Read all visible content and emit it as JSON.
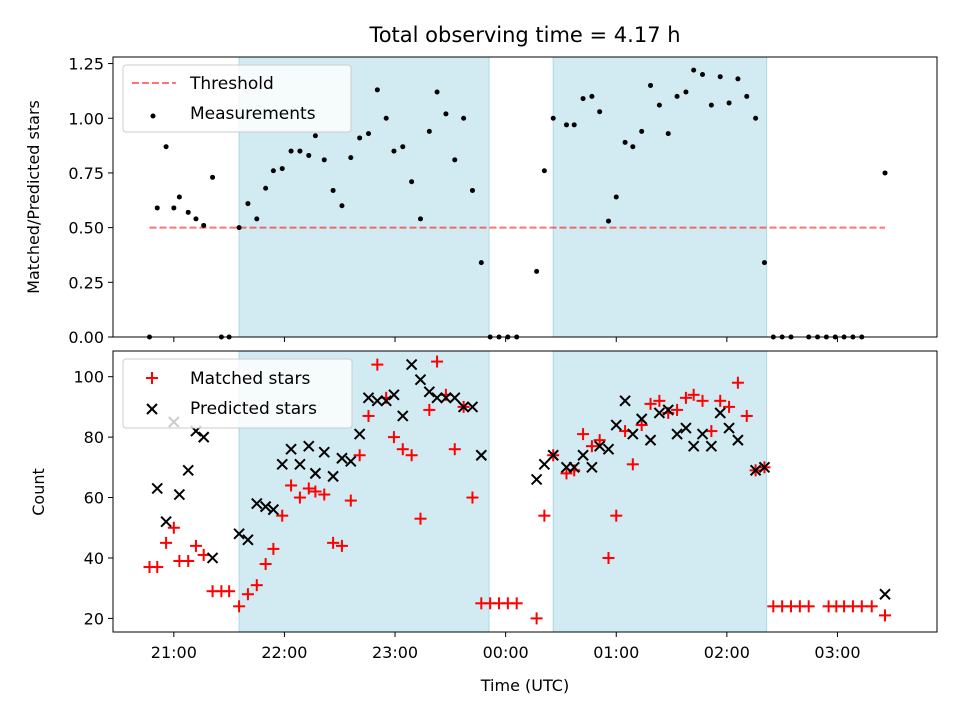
{
  "chart_data": {
    "title": "Total observing time = 4.17 h",
    "xlabel": "Time (UTC)",
    "x_tick_labels": [
      "21:00",
      "22:00",
      "23:00",
      "00:00",
      "01:00",
      "02:00",
      "03:00"
    ],
    "x_range_hours": [
      20.45,
      27.9
    ],
    "shaded_intervals_hours": [
      [
        21.59,
        23.85
      ],
      [
        24.43,
        26.36
      ]
    ],
    "shade_color": "#add8e6",
    "panels": [
      {
        "type": "scatter",
        "ylabel": "Matched/Predicted stars",
        "ylim": [
          0,
          1.28
        ],
        "yticks": [
          "0.00",
          "0.25",
          "0.50",
          "0.75",
          "1.00",
          "1.25"
        ],
        "threshold": {
          "name": "Threshold",
          "value": 0.5,
          "x_range": [
            20.78,
            27.43
          ],
          "color": "#ff0000"
        },
        "series": [
          {
            "name": "Measurements",
            "color": "#000000",
            "points": [
              [
                20.78,
                0.0
              ],
              [
                20.85,
                0.59
              ],
              [
                20.93,
                0.87
              ],
              [
                21.0,
                0.59
              ],
              [
                21.05,
                0.64
              ],
              [
                21.13,
                0.57
              ],
              [
                21.2,
                0.54
              ],
              [
                21.27,
                0.51
              ],
              [
                21.35,
                0.73
              ],
              [
                21.43,
                0.0
              ],
              [
                21.5,
                0.0
              ],
              [
                21.59,
                0.5
              ],
              [
                21.67,
                0.61
              ],
              [
                21.75,
                0.54
              ],
              [
                21.83,
                0.68
              ],
              [
                21.9,
                0.76
              ],
              [
                21.98,
                0.77
              ],
              [
                22.06,
                0.85
              ],
              [
                22.14,
                0.85
              ],
              [
                22.22,
                0.83
              ],
              [
                22.28,
                0.92
              ],
              [
                22.36,
                0.81
              ],
              [
                22.44,
                0.67
              ],
              [
                22.52,
                0.6
              ],
              [
                22.6,
                0.82
              ],
              [
                22.68,
                0.91
              ],
              [
                22.76,
                0.93
              ],
              [
                22.84,
                1.13
              ],
              [
                22.92,
                1.0
              ],
              [
                22.99,
                0.85
              ],
              [
                23.07,
                0.87
              ],
              [
                23.15,
                0.71
              ],
              [
                23.23,
                0.54
              ],
              [
                23.31,
                0.94
              ],
              [
                23.38,
                1.12
              ],
              [
                23.46,
                1.02
              ],
              [
                23.54,
                0.81
              ],
              [
                23.62,
                1.0
              ],
              [
                23.7,
                0.67
              ],
              [
                23.78,
                0.34
              ],
              [
                23.86,
                0.0
              ],
              [
                23.94,
                0.0
              ],
              [
                24.02,
                0.0
              ],
              [
                24.1,
                0.0
              ],
              [
                24.28,
                0.3
              ],
              [
                24.35,
                0.76
              ],
              [
                24.43,
                1.0
              ],
              [
                24.55,
                0.97
              ],
              [
                24.62,
                0.97
              ],
              [
                24.7,
                1.09
              ],
              [
                24.78,
                1.1
              ],
              [
                24.85,
                1.03
              ],
              [
                24.93,
                0.53
              ],
              [
                25.0,
                0.64
              ],
              [
                25.08,
                0.89
              ],
              [
                25.15,
                0.87
              ],
              [
                25.23,
                0.94
              ],
              [
                25.31,
                1.15
              ],
              [
                25.39,
                1.06
              ],
              [
                25.47,
                0.93
              ],
              [
                25.55,
                1.1
              ],
              [
                25.63,
                1.12
              ],
              [
                25.7,
                1.22
              ],
              [
                25.78,
                1.2
              ],
              [
                25.86,
                1.06
              ],
              [
                25.94,
                1.19
              ],
              [
                26.02,
                1.07
              ],
              [
                26.1,
                1.18
              ],
              [
                26.18,
                1.1
              ],
              [
                26.26,
                1.0
              ],
              [
                26.34,
                0.34
              ],
              [
                26.42,
                0.0
              ],
              [
                26.5,
                0.0
              ],
              [
                26.58,
                0.0
              ],
              [
                26.74,
                0.0
              ],
              [
                26.82,
                0.0
              ],
              [
                26.9,
                0.0
              ],
              [
                26.98,
                0.0
              ],
              [
                27.06,
                0.0
              ],
              [
                27.14,
                0.0
              ],
              [
                27.22,
                0.0
              ],
              [
                27.43,
                0.75
              ]
            ]
          }
        ],
        "legend": {
          "position": "upper-left",
          "entries": [
            "Threshold",
            "Measurements"
          ]
        }
      },
      {
        "type": "scatter",
        "ylabel": "Count",
        "ylim": [
          15.5,
          108.5
        ],
        "yticks": [
          "20",
          "40",
          "60",
          "80",
          "100"
        ],
        "series": [
          {
            "name": "Matched stars",
            "color": "#ff0000",
            "marker": "plus",
            "points": [
              [
                20.78,
                37
              ],
              [
                20.85,
                37
              ],
              [
                20.93,
                45
              ],
              [
                21.0,
                50
              ],
              [
                21.05,
                39
              ],
              [
                21.13,
                39
              ],
              [
                21.2,
                44
              ],
              [
                21.27,
                41
              ],
              [
                21.35,
                29
              ],
              [
                21.43,
                29
              ],
              [
                21.5,
                29
              ],
              [
                21.59,
                24
              ],
              [
                21.67,
                28
              ],
              [
                21.75,
                31
              ],
              [
                21.83,
                38
              ],
              [
                21.9,
                43
              ],
              [
                21.98,
                54
              ],
              [
                22.06,
                64
              ],
              [
                22.14,
                60
              ],
              [
                22.22,
                63
              ],
              [
                22.28,
                62
              ],
              [
                22.36,
                61
              ],
              [
                22.44,
                45
              ],
              [
                22.52,
                44
              ],
              [
                22.6,
                59
              ],
              [
                22.68,
                74
              ],
              [
                22.76,
                87
              ],
              [
                22.84,
                104
              ],
              [
                22.92,
                93
              ],
              [
                22.99,
                80
              ],
              [
                23.07,
                76
              ],
              [
                23.15,
                74
              ],
              [
                23.23,
                53
              ],
              [
                23.31,
                89
              ],
              [
                23.38,
                105
              ],
              [
                23.46,
                94
              ],
              [
                23.54,
                76
              ],
              [
                23.62,
                90
              ],
              [
                23.7,
                60
              ],
              [
                23.78,
                25
              ],
              [
                23.86,
                25
              ],
              [
                23.94,
                25
              ],
              [
                24.02,
                25
              ],
              [
                24.1,
                25
              ],
              [
                24.28,
                20
              ],
              [
                24.35,
                54
              ],
              [
                24.43,
                74
              ],
              [
                24.55,
                68
              ],
              [
                24.62,
                69
              ],
              [
                24.7,
                81
              ],
              [
                24.78,
                77
              ],
              [
                24.85,
                79
              ],
              [
                24.93,
                40
              ],
              [
                25.0,
                54
              ],
              [
                25.08,
                82
              ],
              [
                25.15,
                71
              ],
              [
                25.23,
                84
              ],
              [
                25.31,
                91
              ],
              [
                25.39,
                92
              ],
              [
                25.47,
                88
              ],
              [
                25.55,
                89
              ],
              [
                25.63,
                93
              ],
              [
                25.7,
                94
              ],
              [
                25.78,
                92
              ],
              [
                25.86,
                82
              ],
              [
                25.94,
                92
              ],
              [
                26.02,
                90
              ],
              [
                26.1,
                98
              ],
              [
                26.18,
                87
              ],
              [
                26.26,
                69
              ],
              [
                26.34,
                70
              ],
              [
                26.42,
                24
              ],
              [
                26.5,
                24
              ],
              [
                26.58,
                24
              ],
              [
                26.66,
                24
              ],
              [
                26.74,
                24
              ],
              [
                26.92,
                24
              ],
              [
                26.99,
                24
              ],
              [
                27.06,
                24
              ],
              [
                27.14,
                24
              ],
              [
                27.22,
                24
              ],
              [
                27.31,
                24
              ],
              [
                27.43,
                21
              ]
            ]
          },
          {
            "name": "Predicted stars",
            "color": "#000000",
            "marker": "x",
            "points": [
              [
                20.85,
                63
              ],
              [
                20.93,
                52
              ],
              [
                21.0,
                85
              ],
              [
                21.05,
                61
              ],
              [
                21.13,
                69
              ],
              [
                21.2,
                82
              ],
              [
                21.27,
                80
              ],
              [
                21.35,
                40
              ],
              [
                21.59,
                48
              ],
              [
                21.67,
                46
              ],
              [
                21.75,
                58
              ],
              [
                21.83,
                57
              ],
              [
                21.9,
                56
              ],
              [
                21.98,
                71
              ],
              [
                22.06,
                76
              ],
              [
                22.14,
                71
              ],
              [
                22.22,
                77
              ],
              [
                22.28,
                68
              ],
              [
                22.36,
                75
              ],
              [
                22.44,
                67
              ],
              [
                22.52,
                73
              ],
              [
                22.6,
                72
              ],
              [
                22.68,
                81
              ],
              [
                22.76,
                93
              ],
              [
                22.84,
                92
              ],
              [
                22.92,
                92
              ],
              [
                22.99,
                94
              ],
              [
                23.07,
                87
              ],
              [
                23.15,
                104
              ],
              [
                23.23,
                99
              ],
              [
                23.31,
                95
              ],
              [
                23.38,
                93
              ],
              [
                23.46,
                93
              ],
              [
                23.54,
                93
              ],
              [
                23.62,
                90
              ],
              [
                23.7,
                90
              ],
              [
                23.78,
                74
              ],
              [
                24.28,
                66
              ],
              [
                24.35,
                71
              ],
              [
                24.43,
                74
              ],
              [
                24.55,
                70
              ],
              [
                24.62,
                70
              ],
              [
                24.7,
                74
              ],
              [
                24.78,
                70
              ],
              [
                24.85,
                77
              ],
              [
                24.93,
                76
              ],
              [
                25.0,
                84
              ],
              [
                25.08,
                92
              ],
              [
                25.15,
                81
              ],
              [
                25.23,
                86
              ],
              [
                25.31,
                79
              ],
              [
                25.39,
                88
              ],
              [
                25.47,
                89
              ],
              [
                25.55,
                81
              ],
              [
                25.63,
                83
              ],
              [
                25.7,
                77
              ],
              [
                25.78,
                81
              ],
              [
                25.86,
                77
              ],
              [
                25.94,
                88
              ],
              [
                26.02,
                83
              ],
              [
                26.1,
                79
              ],
              [
                26.26,
                69
              ],
              [
                26.34,
                70
              ],
              [
                27.43,
                28
              ]
            ]
          }
        ],
        "legend": {
          "position": "upper-left",
          "entries": [
            "Matched stars",
            "Predicted stars"
          ]
        }
      }
    ]
  }
}
